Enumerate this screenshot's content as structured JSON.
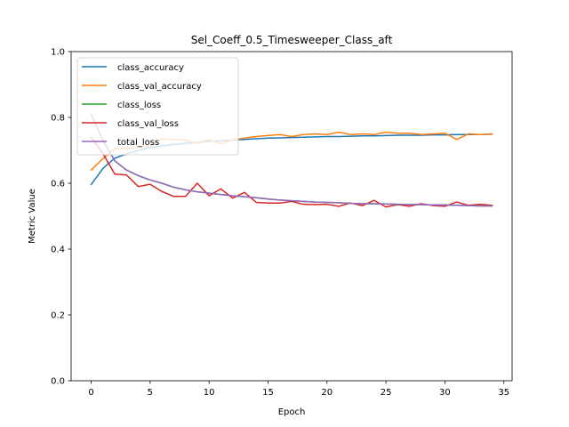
{
  "chart_data": {
    "type": "line",
    "title": "Sel_Coeff_0.5_Timesweeper_Class_aft",
    "xlabel": "Epoch",
    "ylabel": "Metric Value",
    "xlim": [
      -1.7,
      35.7
    ],
    "ylim": [
      0.0,
      1.0
    ],
    "xticks": [
      0,
      5,
      10,
      15,
      20,
      25,
      30,
      35
    ],
    "yticks": [
      0.0,
      0.2,
      0.4,
      0.6,
      0.8,
      1.0
    ],
    "grid": false,
    "legend_position": "top-left",
    "x": [
      0,
      1,
      2,
      3,
      4,
      5,
      6,
      7,
      8,
      9,
      10,
      11,
      12,
      13,
      14,
      15,
      16,
      17,
      18,
      19,
      20,
      21,
      22,
      23,
      24,
      25,
      26,
      27,
      28,
      29,
      30,
      31,
      32,
      33,
      34
    ],
    "series": [
      {
        "name": "class_accuracy",
        "color": "#1f77b4",
        "values": [
          0.596,
          0.645,
          0.676,
          0.689,
          0.7,
          0.708,
          0.714,
          0.718,
          0.721,
          0.724,
          0.727,
          0.729,
          0.731,
          0.733,
          0.735,
          0.737,
          0.738,
          0.739,
          0.74,
          0.741,
          0.742,
          0.742,
          0.743,
          0.744,
          0.744,
          0.745,
          0.746,
          0.746,
          0.746,
          0.747,
          0.747,
          0.748,
          0.748,
          0.748,
          0.749
        ]
      },
      {
        "name": "class_val_accuracy",
        "color": "#ff7f0e",
        "values": [
          0.64,
          0.675,
          0.705,
          0.705,
          0.71,
          0.712,
          0.735,
          0.733,
          0.731,
          0.721,
          0.733,
          0.72,
          0.732,
          0.737,
          0.742,
          0.745,
          0.748,
          0.742,
          0.748,
          0.75,
          0.748,
          0.755,
          0.748,
          0.75,
          0.748,
          0.755,
          0.752,
          0.752,
          0.748,
          0.75,
          0.752,
          0.733,
          0.75,
          0.748,
          0.75
        ]
      },
      {
        "name": "class_loss",
        "color": "#2ca02c",
        "values": [
          0.81,
          0.73,
          0.668,
          0.64,
          0.623,
          0.61,
          0.6,
          0.588,
          0.58,
          0.574,
          0.57,
          0.566,
          0.562,
          0.559,
          0.556,
          0.552,
          0.549,
          0.547,
          0.545,
          0.543,
          0.542,
          0.541,
          0.539,
          0.538,
          0.538,
          0.537,
          0.536,
          0.535,
          0.535,
          0.534,
          0.534,
          0.533,
          0.532,
          0.531,
          0.531
        ]
      },
      {
        "name": "class_val_loss",
        "color": "#d62728",
        "values": [
          0.74,
          0.69,
          0.628,
          0.625,
          0.59,
          0.597,
          0.575,
          0.56,
          0.56,
          0.6,
          0.562,
          0.583,
          0.555,
          0.572,
          0.542,
          0.54,
          0.54,
          0.545,
          0.536,
          0.535,
          0.536,
          0.53,
          0.54,
          0.532,
          0.548,
          0.528,
          0.535,
          0.53,
          0.538,
          0.532,
          0.53,
          0.543,
          0.533,
          0.536,
          0.533
        ]
      },
      {
        "name": "total_loss",
        "color": "#9467bd",
        "values": [
          0.81,
          0.73,
          0.668,
          0.64,
          0.623,
          0.61,
          0.6,
          0.588,
          0.58,
          0.574,
          0.57,
          0.566,
          0.562,
          0.559,
          0.556,
          0.552,
          0.549,
          0.547,
          0.545,
          0.543,
          0.542,
          0.541,
          0.539,
          0.538,
          0.538,
          0.537,
          0.536,
          0.535,
          0.535,
          0.534,
          0.534,
          0.533,
          0.532,
          0.531,
          0.531
        ]
      }
    ]
  }
}
